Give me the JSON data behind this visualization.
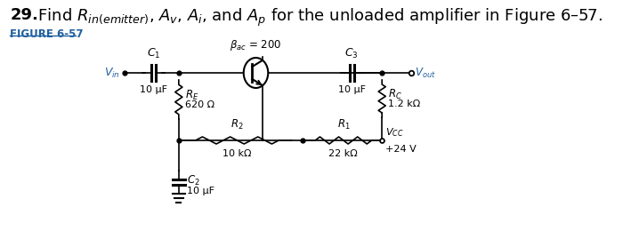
{
  "title_bold": "29.",
  "title_rest": "  Find $R_{in(emitter)}$, $A_v$, $A_i$, and $A_p$ for the unloaded amplifier in Figure 6–57.",
  "figure_label": "FIGURE 6-57",
  "figure_label_color": "#2060a0",
  "bg_color": "#ffffff",
  "title_fontsize": 13,
  "label_fontsize": 9,
  "beta_label": "$\\beta_{ac}$ = 200",
  "C1_label": "$C_1$",
  "C2_label": "$C_2$",
  "C3_label": "$C_3$",
  "RE_label": "$R_E$",
  "RE_value": "620 Ω",
  "R2_label": "$R_2$",
  "R2_value": "10 kΩ",
  "R1_label": "$R_1$",
  "R1_value": "22 kΩ",
  "RC_label": "$R_C$",
  "RC_value": "1.2 kΩ",
  "cap_value": "10 μF",
  "Vin_label": "$V_{in}$",
  "Vout_label": "$V_{out}$",
  "Vcc_line1": "$V_{CC}$",
  "Vcc_line2": "+24 V"
}
